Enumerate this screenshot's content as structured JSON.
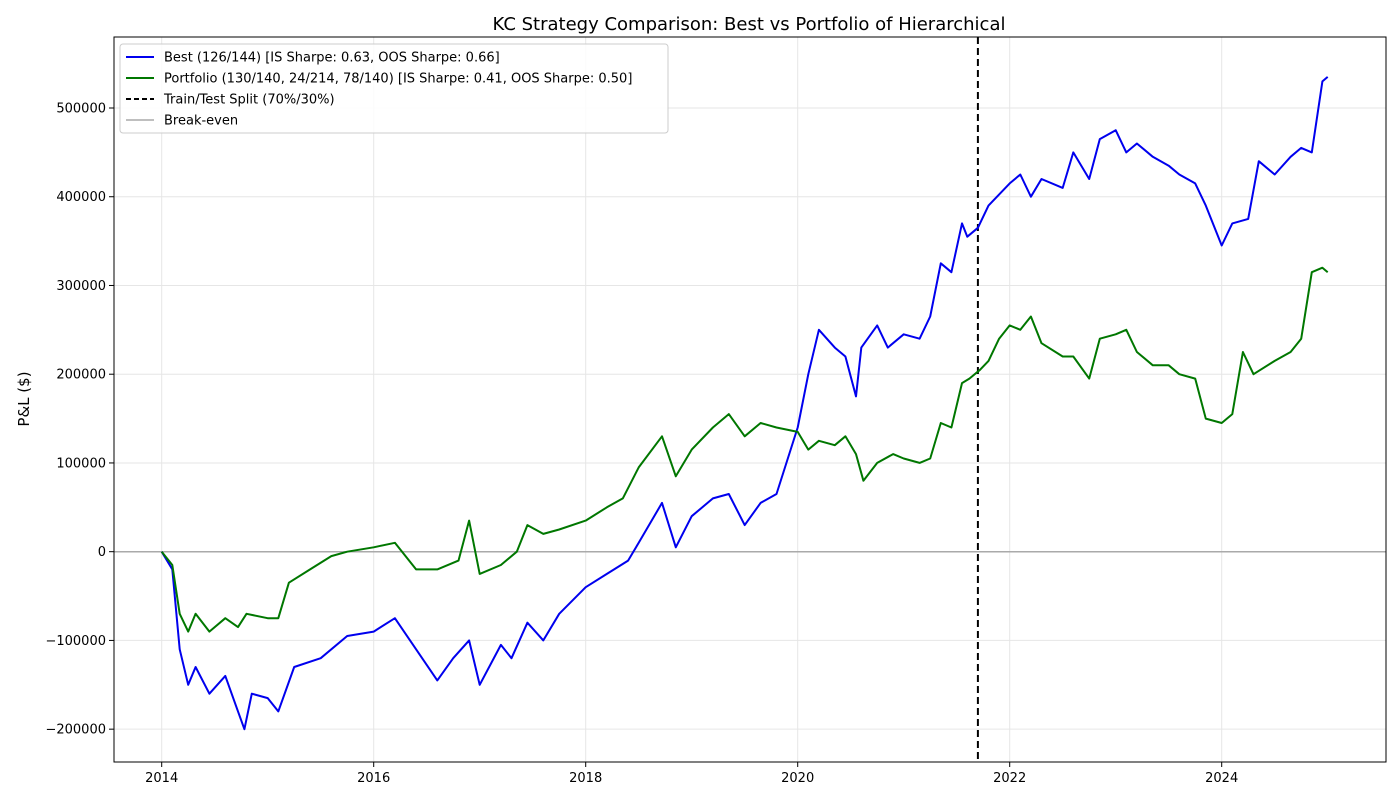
{
  "chart_data": {
    "type": "line",
    "title": "KC Strategy Comparison: Best vs Portfolio of Hierarchical",
    "xlabel": "",
    "ylabel": "P&L ($)",
    "xlim": [
      2013.55,
      2025.55
    ],
    "ylim": [
      -237000,
      580000
    ],
    "x_ticks": [
      2014,
      2016,
      2018,
      2020,
      2022,
      2024
    ],
    "x_tick_labels": [
      "2014",
      "2016",
      "2018",
      "2020",
      "2022",
      "2024"
    ],
    "y_ticks": [
      -200000,
      -100000,
      0,
      100000,
      200000,
      300000,
      400000,
      500000
    ],
    "y_tick_labels": [
      "−200000",
      "−100000",
      "0",
      "100000",
      "200000",
      "300000",
      "400000",
      "500000"
    ],
    "grid": true,
    "legend_position": "top-left",
    "series": [
      {
        "name": "Best (126/144) [IS Sharpe: 0.63, OOS Sharpe: 0.66]",
        "color": "#0000ee",
        "x": [
          2014.0,
          2014.1,
          2014.17,
          2014.25,
          2014.32,
          2014.45,
          2014.6,
          2014.72,
          2014.78,
          2014.85,
          2015.0,
          2015.1,
          2015.25,
          2015.5,
          2015.75,
          2016.0,
          2016.2,
          2016.4,
          2016.6,
          2016.75,
          2016.9,
          2017.0,
          2017.2,
          2017.3,
          2017.45,
          2017.6,
          2017.75,
          2018.0,
          2018.2,
          2018.4,
          2018.5,
          2018.72,
          2018.85,
          2019.0,
          2019.2,
          2019.35,
          2019.5,
          2019.65,
          2019.8,
          2020.0,
          2020.1,
          2020.2,
          2020.35,
          2020.45,
          2020.55,
          2020.6,
          2020.75,
          2020.85,
          2021.0,
          2021.15,
          2021.25,
          2021.35,
          2021.45,
          2021.55,
          2021.6,
          2021.7,
          2021.8,
          2022.0,
          2022.1,
          2022.2,
          2022.3,
          2022.5,
          2022.6,
          2022.75,
          2022.85,
          2023.0,
          2023.1,
          2023.2,
          2023.35,
          2023.5,
          2023.6,
          2023.75,
          2023.85,
          2024.0,
          2024.1,
          2024.25,
          2024.35,
          2024.5,
          2024.65,
          2024.75,
          2024.85,
          2024.95,
          2025.0
        ],
        "values": [
          0,
          -20000,
          -110000,
          -150000,
          -130000,
          -160000,
          -140000,
          -180000,
          -200000,
          -160000,
          -165000,
          -180000,
          -130000,
          -120000,
          -95000,
          -90000,
          -75000,
          -110000,
          -145000,
          -120000,
          -100000,
          -150000,
          -105000,
          -120000,
          -80000,
          -100000,
          -70000,
          -40000,
          -25000,
          -10000,
          10000,
          55000,
          5000,
          40000,
          60000,
          65000,
          30000,
          55000,
          65000,
          140000,
          200000,
          250000,
          230000,
          220000,
          175000,
          230000,
          255000,
          230000,
          245000,
          240000,
          265000,
          325000,
          315000,
          370000,
          355000,
          365000,
          390000,
          415000,
          425000,
          400000,
          420000,
          410000,
          450000,
          420000,
          465000,
          475000,
          450000,
          460000,
          445000,
          435000,
          425000,
          415000,
          390000,
          345000,
          370000,
          375000,
          440000,
          425000,
          445000,
          455000,
          450000,
          530000,
          535000
        ]
      },
      {
        "name": "Portfolio (130/140, 24/214, 78/140) [IS Sharpe: 0.41, OOS Sharpe: 0.50]",
        "color": "#007700",
        "x": [
          2014.0,
          2014.1,
          2014.17,
          2014.25,
          2014.32,
          2014.45,
          2014.6,
          2014.72,
          2014.8,
          2015.0,
          2015.1,
          2015.2,
          2015.4,
          2015.6,
          2015.75,
          2016.0,
          2016.2,
          2016.4,
          2016.6,
          2016.8,
          2016.9,
          2017.0,
          2017.2,
          2017.35,
          2017.45,
          2017.6,
          2017.75,
          2018.0,
          2018.2,
          2018.35,
          2018.5,
          2018.72,
          2018.85,
          2019.0,
          2019.2,
          2019.35,
          2019.5,
          2019.65,
          2019.8,
          2020.0,
          2020.1,
          2020.2,
          2020.35,
          2020.45,
          2020.55,
          2020.62,
          2020.75,
          2020.9,
          2021.0,
          2021.15,
          2021.25,
          2021.35,
          2021.45,
          2021.55,
          2021.62,
          2021.72,
          2021.8,
          2021.9,
          2022.0,
          2022.1,
          2022.2,
          2022.3,
          2022.5,
          2022.6,
          2022.75,
          2022.85,
          2023.0,
          2023.1,
          2023.2,
          2023.35,
          2023.5,
          2023.6,
          2023.75,
          2023.85,
          2024.0,
          2024.1,
          2024.2,
          2024.3,
          2024.5,
          2024.65,
          2024.75,
          2024.85,
          2024.95,
          2025.0
        ],
        "values": [
          0,
          -15000,
          -70000,
          -90000,
          -70000,
          -90000,
          -75000,
          -85000,
          -70000,
          -75000,
          -75000,
          -35000,
          -20000,
          -5000,
          0,
          5000,
          10000,
          -20000,
          -20000,
          -10000,
          35000,
          -25000,
          -15000,
          0,
          30000,
          20000,
          25000,
          35000,
          50000,
          60000,
          95000,
          130000,
          85000,
          115000,
          140000,
          155000,
          130000,
          145000,
          140000,
          135000,
          115000,
          125000,
          120000,
          130000,
          110000,
          80000,
          100000,
          110000,
          105000,
          100000,
          105000,
          145000,
          140000,
          190000,
          195000,
          205000,
          215000,
          240000,
          255000,
          250000,
          265000,
          235000,
          220000,
          220000,
          195000,
          240000,
          245000,
          250000,
          225000,
          210000,
          210000,
          200000,
          195000,
          150000,
          145000,
          155000,
          225000,
          200000,
          215000,
          225000,
          240000,
          315000,
          320000,
          315000
        ]
      }
    ],
    "reference_lines": [
      {
        "name": "Train/Test Split (70%/30%)",
        "orientation": "vertical",
        "x": 2021.7,
        "color": "#000000",
        "style": "dashed"
      },
      {
        "name": "Break-even",
        "orientation": "horizontal",
        "y": 0,
        "color": "#aaaaaa",
        "style": "solid"
      }
    ]
  }
}
